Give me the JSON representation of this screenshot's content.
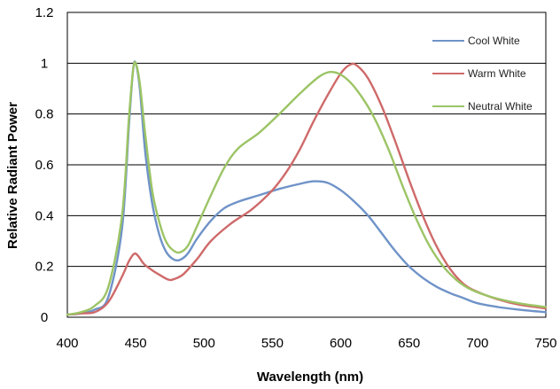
{
  "chart_data": {
    "type": "line",
    "xlabel": "Wavelength (nm)",
    "ylabel": "Relative Radiant Power",
    "xlim": [
      400,
      750
    ],
    "ylim": [
      0,
      1.2
    ],
    "x_ticks": [
      "400",
      "450",
      "500",
      "550",
      "600",
      "650",
      "700",
      "750"
    ],
    "y_ticks": [
      "0",
      "0.2",
      "0.4",
      "0.6",
      "0.8",
      "1",
      "1.2"
    ],
    "grid": "horizontal",
    "legend_position": "top-right",
    "series": [
      {
        "name": "Cool White",
        "color": "#6f93c8",
        "points": [
          [
            400,
            0.01
          ],
          [
            410,
            0.015
          ],
          [
            420,
            0.03
          ],
          [
            430,
            0.08
          ],
          [
            440,
            0.35
          ],
          [
            445,
            0.75
          ],
          [
            448,
            0.97
          ],
          [
            450,
            1.0
          ],
          [
            453,
            0.9
          ],
          [
            457,
            0.65
          ],
          [
            462,
            0.45
          ],
          [
            467,
            0.33
          ],
          [
            472,
            0.26
          ],
          [
            477,
            0.23
          ],
          [
            482,
            0.225
          ],
          [
            488,
            0.25
          ],
          [
            495,
            0.31
          ],
          [
            505,
            0.38
          ],
          [
            515,
            0.43
          ],
          [
            525,
            0.455
          ],
          [
            540,
            0.48
          ],
          [
            555,
            0.505
          ],
          [
            570,
            0.525
          ],
          [
            580,
            0.535
          ],
          [
            590,
            0.53
          ],
          [
            600,
            0.5
          ],
          [
            610,
            0.455
          ],
          [
            620,
            0.4
          ],
          [
            630,
            0.33
          ],
          [
            640,
            0.26
          ],
          [
            650,
            0.2
          ],
          [
            660,
            0.155
          ],
          [
            670,
            0.12
          ],
          [
            680,
            0.095
          ],
          [
            690,
            0.075
          ],
          [
            700,
            0.055
          ],
          [
            715,
            0.04
          ],
          [
            730,
            0.03
          ],
          [
            750,
            0.02
          ]
        ]
      },
      {
        "name": "Warm White",
        "color": "#cf6a6a",
        "points": [
          [
            400,
            0.01
          ],
          [
            410,
            0.015
          ],
          [
            420,
            0.02
          ],
          [
            430,
            0.06
          ],
          [
            440,
            0.16
          ],
          [
            445,
            0.22
          ],
          [
            449,
            0.25
          ],
          [
            452,
            0.24
          ],
          [
            456,
            0.21
          ],
          [
            462,
            0.185
          ],
          [
            468,
            0.165
          ],
          [
            474,
            0.148
          ],
          [
            478,
            0.15
          ],
          [
            485,
            0.17
          ],
          [
            495,
            0.23
          ],
          [
            505,
            0.3
          ],
          [
            520,
            0.37
          ],
          [
            535,
            0.425
          ],
          [
            550,
            0.5
          ],
          [
            560,
            0.57
          ],
          [
            570,
            0.66
          ],
          [
            580,
            0.77
          ],
          [
            590,
            0.87
          ],
          [
            600,
            0.96
          ],
          [
            607,
            0.995
          ],
          [
            612,
            0.99
          ],
          [
            620,
            0.94
          ],
          [
            630,
            0.83
          ],
          [
            640,
            0.69
          ],
          [
            650,
            0.54
          ],
          [
            660,
            0.4
          ],
          [
            670,
            0.28
          ],
          [
            680,
            0.19
          ],
          [
            690,
            0.13
          ],
          [
            700,
            0.1
          ],
          [
            715,
            0.07
          ],
          [
            730,
            0.05
          ],
          [
            750,
            0.035
          ]
        ]
      },
      {
        "name": "Neutral White",
        "color": "#9cc465",
        "points": [
          [
            400,
            0.01
          ],
          [
            410,
            0.02
          ],
          [
            420,
            0.045
          ],
          [
            430,
            0.12
          ],
          [
            440,
            0.4
          ],
          [
            445,
            0.78
          ],
          [
            448,
            0.97
          ],
          [
            450,
            1.0
          ],
          [
            453,
            0.92
          ],
          [
            457,
            0.72
          ],
          [
            462,
            0.5
          ],
          [
            467,
            0.38
          ],
          [
            472,
            0.3
          ],
          [
            477,
            0.265
          ],
          [
            482,
            0.255
          ],
          [
            488,
            0.28
          ],
          [
            495,
            0.36
          ],
          [
            505,
            0.48
          ],
          [
            515,
            0.59
          ],
          [
            525,
            0.665
          ],
          [
            540,
            0.725
          ],
          [
            555,
            0.8
          ],
          [
            570,
            0.88
          ],
          [
            585,
            0.95
          ],
          [
            595,
            0.965
          ],
          [
            605,
            0.935
          ],
          [
            615,
            0.87
          ],
          [
            625,
            0.78
          ],
          [
            635,
            0.66
          ],
          [
            645,
            0.52
          ],
          [
            655,
            0.39
          ],
          [
            665,
            0.28
          ],
          [
            675,
            0.2
          ],
          [
            685,
            0.145
          ],
          [
            695,
            0.11
          ],
          [
            710,
            0.08
          ],
          [
            730,
            0.055
          ],
          [
            750,
            0.04
          ]
        ]
      }
    ]
  }
}
